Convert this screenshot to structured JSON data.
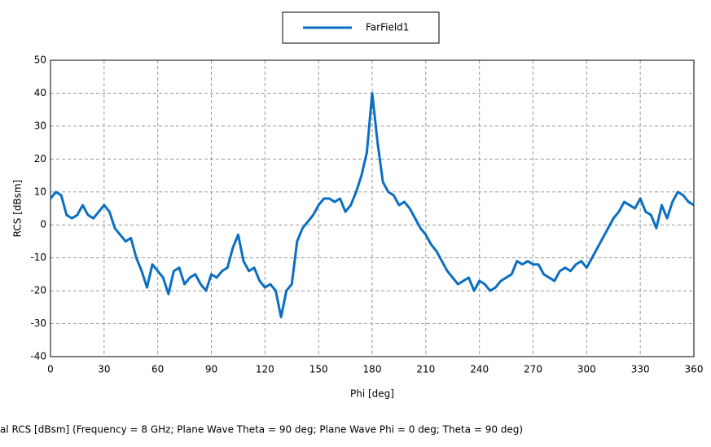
{
  "chart_data": {
    "type": "line",
    "xlabel": "Phi [deg]",
    "ylabel": "RCS [dBsm]",
    "footer": "al RCS [dBsm] (Frequency = 8 GHz; Plane Wave Theta = 90 deg; Plane Wave Phi = 0 deg; Theta = 90 deg)",
    "xlim": [
      0,
      360
    ],
    "xticks": [
      0,
      30,
      60,
      90,
      120,
      150,
      180,
      210,
      240,
      270,
      300,
      330,
      360
    ],
    "ylim": [
      -40,
      50
    ],
    "yticks": [
      -40,
      -30,
      -20,
      -10,
      0,
      10,
      20,
      30,
      40,
      50
    ],
    "grid": true,
    "x": [
      0,
      3,
      6,
      9,
      12,
      15,
      18,
      21,
      24,
      27,
      30,
      33,
      36,
      39,
      42,
      45,
      48,
      51,
      54,
      57,
      60,
      63,
      66,
      69,
      72,
      75,
      78,
      81,
      84,
      87,
      90,
      93,
      96,
      99,
      102,
      105,
      108,
      111,
      114,
      117,
      120,
      123,
      126,
      129,
      132,
      135,
      138,
      141,
      144,
      147,
      150,
      153,
      156,
      159,
      162,
      165,
      168,
      171,
      174,
      177,
      180,
      183,
      186,
      189,
      192,
      195,
      198,
      201,
      204,
      207,
      210,
      213,
      216,
      219,
      222,
      225,
      228,
      231,
      234,
      237,
      240,
      243,
      246,
      249,
      252,
      255,
      258,
      261,
      264,
      267,
      270,
      273,
      276,
      279,
      282,
      285,
      288,
      291,
      294,
      297,
      300,
      303,
      306,
      309,
      312,
      315,
      318,
      321,
      324,
      327,
      330,
      333,
      336,
      339,
      342,
      345,
      348,
      351,
      354,
      357,
      360
    ],
    "series": [
      {
        "name": "FarField1",
        "color": "#0a6fc2",
        "values": [
          8,
          10,
          9,
          3,
          2,
          3,
          6,
          3,
          2,
          4,
          6,
          4,
          -1,
          -3,
          -5,
          -4,
          -10,
          -14,
          -19,
          -12,
          -14,
          -16,
          -21,
          -14,
          -13,
          -18,
          -16,
          -15,
          -18,
          -20,
          -15,
          -16,
          -14,
          -13,
          -7,
          -3,
          -11,
          -14,
          -13,
          -17,
          -19,
          -18,
          -20,
          -28,
          -20,
          -18,
          -5,
          -1,
          1,
          3,
          6,
          8,
          8,
          7,
          8,
          4,
          6,
          10,
          15,
          22,
          40,
          25,
          13,
          10,
          9,
          6,
          7,
          5,
          2,
          -1,
          -3,
          -6,
          -8,
          -11,
          -14,
          -16,
          -18,
          -17,
          -16,
          -20,
          -17,
          -18,
          -20,
          -19,
          -17,
          -16,
          -15,
          -11,
          -12,
          -11,
          -12,
          -12,
          -15,
          -16,
          -17,
          -14,
          -13,
          -14,
          -12,
          -11,
          -13,
          -10,
          -7,
          -4,
          -1,
          2,
          4,
          7,
          6,
          5,
          8,
          4,
          3,
          -1,
          6,
          2,
          7,
          10,
          9,
          7,
          6
        ]
      }
    ]
  }
}
